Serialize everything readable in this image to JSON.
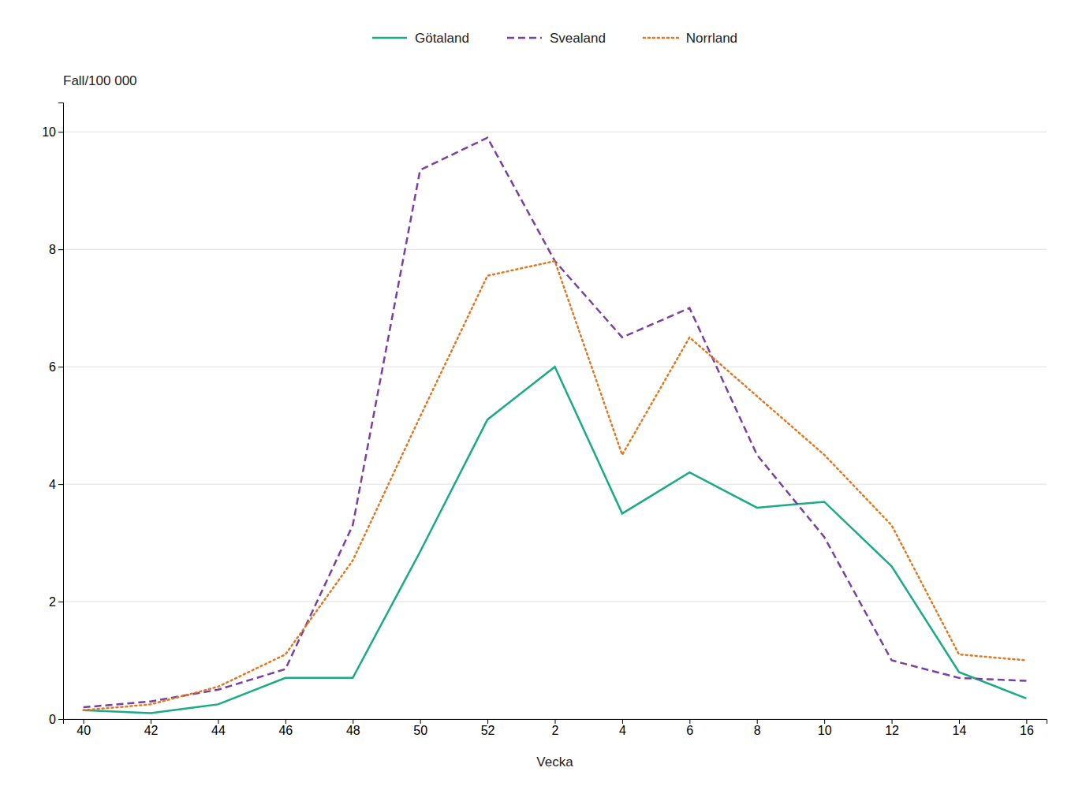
{
  "chart_data": {
    "type": "line",
    "xlabel": "Vecka",
    "ylabel": "Fall/100 000",
    "categories": [
      "40",
      "42",
      "44",
      "46",
      "48",
      "50",
      "52",
      "2",
      "4",
      "6",
      "8",
      "10",
      "12",
      "14",
      "16"
    ],
    "series": [
      {
        "name": "Götaland",
        "color": "#1aaa85",
        "line_style": "solid",
        "values": [
          0.15,
          0.1,
          0.25,
          0.7,
          0.7,
          2.85,
          5.1,
          6.0,
          3.5,
          4.2,
          3.6,
          3.7,
          2.6,
          0.8,
          0.35
        ]
      },
      {
        "name": "Svealand",
        "color": "#7b3fa0",
        "line_style": "dashed",
        "values": [
          0.2,
          0.3,
          0.5,
          0.85,
          3.3,
          9.35,
          9.9,
          7.8,
          6.5,
          7.0,
          4.5,
          3.1,
          1.0,
          0.7,
          0.65
        ]
      },
      {
        "name": "Norrland",
        "color": "#e07820",
        "line_style": "dotted",
        "values": [
          0.15,
          0.25,
          0.55,
          1.1,
          2.7,
          5.15,
          7.55,
          7.8,
          4.5,
          6.5,
          5.5,
          4.5,
          3.3,
          1.1,
          1.0
        ]
      }
    ],
    "ylim": [
      0,
      10.5
    ],
    "yticks": [
      0,
      2,
      4,
      6,
      8,
      10
    ],
    "grid": true,
    "legend": "top"
  }
}
